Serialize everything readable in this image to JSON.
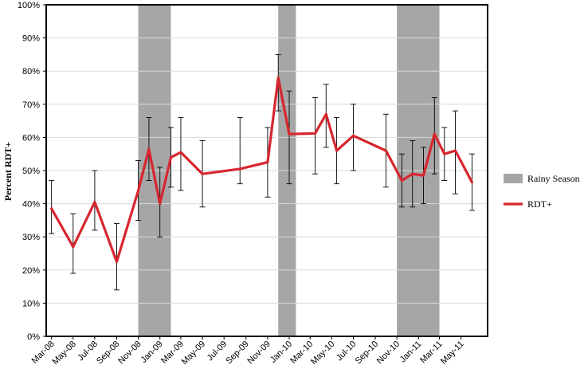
{
  "chart_data": {
    "type": "line",
    "ylabel": "Percent RDT+",
    "ylim": [
      0,
      100
    ],
    "y_ticks": [
      {
        "value": 0,
        "label": "0%"
      },
      {
        "value": 10,
        "label": "10%"
      },
      {
        "value": 20,
        "label": "20%"
      },
      {
        "value": 30,
        "label": "30%"
      },
      {
        "value": 40,
        "label": "40%"
      },
      {
        "value": 50,
        "label": "50%"
      },
      {
        "value": 60,
        "label": "60%"
      },
      {
        "value": 70,
        "label": "70%"
      },
      {
        "value": 80,
        "label": "80%"
      },
      {
        "value": 90,
        "label": "90%"
      },
      {
        "value": 100,
        "label": "100%"
      }
    ],
    "x_start": "2008-02-15",
    "x_end": "2011-07-15",
    "x_ticks": [
      {
        "date": "2008-03-01",
        "label": "Mar-08"
      },
      {
        "date": "2008-05-01",
        "label": "May-08"
      },
      {
        "date": "2008-07-01",
        "label": "Jul-08"
      },
      {
        "date": "2008-09-01",
        "label": "Sep-08"
      },
      {
        "date": "2008-11-01",
        "label": "Nov-08"
      },
      {
        "date": "2009-01-01",
        "label": "Jan-09"
      },
      {
        "date": "2009-03-01",
        "label": "Mar-09"
      },
      {
        "date": "2009-05-01",
        "label": "May-09"
      },
      {
        "date": "2009-07-01",
        "label": "Jul-09"
      },
      {
        "date": "2009-09-01",
        "label": "Sep-09"
      },
      {
        "date": "2009-11-01",
        "label": "Nov-09"
      },
      {
        "date": "2010-01-01",
        "label": "Jan-10"
      },
      {
        "date": "2010-03-01",
        "label": "Mar-10"
      },
      {
        "date": "2010-05-01",
        "label": "May-10"
      },
      {
        "date": "2010-07-01",
        "label": "Jul-10"
      },
      {
        "date": "2010-09-01",
        "label": "Sep-10"
      },
      {
        "date": "2010-11-01",
        "label": "Nov-10"
      },
      {
        "date": "2011-01-01",
        "label": "Jan-11"
      },
      {
        "date": "2011-03-01",
        "label": "Mar-11"
      },
      {
        "date": "2011-05-01",
        "label": "May-11"
      }
    ],
    "rainy_seasons": [
      {
        "start": "2008-11-01",
        "end": "2009-02-01"
      },
      {
        "start": "2009-12-01",
        "end": "2010-01-20"
      },
      {
        "start": "2010-11-01",
        "end": "2011-03-01"
      }
    ],
    "series": [
      {
        "name": "RDT+",
        "color": "#d7262e",
        "points": [
          {
            "date": "2008-03-01",
            "value": 38.5,
            "low": 31,
            "high": 47
          },
          {
            "date": "2008-05-01",
            "value": 27,
            "low": 19,
            "high": 37
          },
          {
            "date": "2008-07-01",
            "value": 40.5,
            "low": 32,
            "high": 50
          },
          {
            "date": "2008-09-01",
            "value": 22.5,
            "low": 14,
            "high": 34
          },
          {
            "date": "2008-11-01",
            "value": 44,
            "low": 35,
            "high": 53
          },
          {
            "date": "2008-12-01",
            "value": 56.5,
            "low": 47,
            "high": 66
          },
          {
            "date": "2009-01-01",
            "value": 40,
            "low": 30,
            "high": 51
          },
          {
            "date": "2009-02-01",
            "value": 54,
            "low": 45,
            "high": 63
          },
          {
            "date": "2009-03-01",
            "value": 55.5,
            "low": 44,
            "high": 66
          },
          {
            "date": "2009-05-01",
            "value": 49,
            "low": 39,
            "high": 59
          },
          {
            "date": "2009-08-15",
            "value": 50.5,
            "low": 46,
            "high": 66
          },
          {
            "date": "2009-11-01",
            "value": 52.5,
            "low": 42,
            "high": 63
          },
          {
            "date": "2009-12-01",
            "value": 78,
            "low": 68,
            "high": 85
          },
          {
            "date": "2010-01-01",
            "value": 61,
            "low": 46,
            "high": 74
          },
          {
            "date": "2010-03-15",
            "value": 61.2,
            "low": 49,
            "high": 72
          },
          {
            "date": "2010-04-15",
            "value": 67,
            "low": 57,
            "high": 76
          },
          {
            "date": "2010-05-15",
            "value": 56,
            "low": 46,
            "high": 66
          },
          {
            "date": "2010-07-01",
            "value": 60.5,
            "low": 50,
            "high": 70
          },
          {
            "date": "2010-10-01",
            "value": 56,
            "low": 45,
            "high": 67
          },
          {
            "date": "2010-11-15",
            "value": 47,
            "low": 39,
            "high": 55
          },
          {
            "date": "2010-12-15",
            "value": 49,
            "low": 39,
            "high": 59
          },
          {
            "date": "2011-01-15",
            "value": 48.5,
            "low": 40,
            "high": 57
          },
          {
            "date": "2011-02-15",
            "value": 61,
            "low": 49,
            "high": 72
          },
          {
            "date": "2011-03-15",
            "value": 55,
            "low": 47,
            "high": 63
          },
          {
            "date": "2011-04-15",
            "value": 56,
            "low": 43,
            "high": 68
          },
          {
            "date": "2011-06-01",
            "value": 46.5,
            "low": 38,
            "high": 55
          }
        ]
      }
    ],
    "legend": {
      "placement": "right",
      "entries": [
        {
          "label": "Rainy Season",
          "kind": "band",
          "color": "#a6a6a6"
        },
        {
          "label": "RDT+",
          "kind": "line",
          "color": "#d7262e"
        }
      ]
    },
    "grid": {
      "y": true,
      "x": false,
      "color": "#d9d9d9"
    }
  }
}
